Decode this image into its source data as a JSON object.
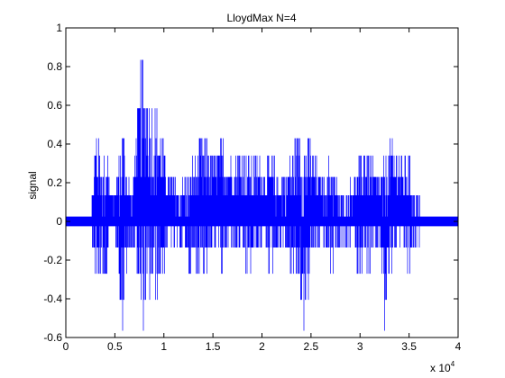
{
  "chart_data": {
    "type": "line",
    "title": "LloydMax  N=4",
    "xlabel": "",
    "ylabel": "signal",
    "xlim": [
      0,
      40000
    ],
    "ylim": [
      -0.6,
      1
    ],
    "x_multiplier_label": {
      "base": "x 10",
      "exponent": "4"
    },
    "xticks": [
      0,
      5000,
      10000,
      15000,
      20000,
      25000,
      30000,
      35000,
      40000
    ],
    "xtick_labels": [
      "0",
      "0.5",
      "1",
      "1.5",
      "2",
      "2.5",
      "3",
      "3.5",
      "4"
    ],
    "yticks": [
      -0.6,
      -0.4,
      -0.2,
      0,
      0.2,
      0.4,
      0.6,
      0.8,
      1
    ],
    "ytick_labels": [
      "-0.6",
      "-0.4",
      "-0.2",
      "0",
      "0.2",
      "0.4",
      "0.6",
      "0.8",
      "1"
    ],
    "grid": false,
    "quantization_levels": [
      -0.565,
      -0.405,
      -0.27,
      -0.135,
      -0.025,
      0.025,
      0.135,
      0.23,
      0.34,
      0.43,
      0.585,
      0.835
    ],
    "series": [
      {
        "color": "#0000ff",
        "envelope": [
          {
            "x": 0,
            "min": -0.02,
            "max": 0.05
          },
          {
            "x": 1000,
            "min": -0.02,
            "max": 0.05
          },
          {
            "x": 2000,
            "min": -0.03,
            "max": 0.05
          },
          {
            "x": 2600,
            "min": -0.03,
            "max": 0.06
          },
          {
            "x": 2900,
            "min": -0.27,
            "max": 0.34
          },
          {
            "x": 3100,
            "min": -0.4,
            "max": 0.585
          },
          {
            "x": 3500,
            "min": -0.27,
            "max": 0.43
          },
          {
            "x": 3800,
            "min": -0.4,
            "max": 0.34
          },
          {
            "x": 4200,
            "min": -0.27,
            "max": 0.43
          },
          {
            "x": 4500,
            "min": -0.13,
            "max": 0.23
          },
          {
            "x": 5000,
            "min": -0.02,
            "max": 0.135
          },
          {
            "x": 5500,
            "min": -0.4,
            "max": 0.43
          },
          {
            "x": 5800,
            "min": -0.565,
            "max": 0.585
          },
          {
            "x": 6200,
            "min": -0.27,
            "max": 0.34
          },
          {
            "x": 6800,
            "min": -0.13,
            "max": 0.135
          },
          {
            "x": 7200,
            "min": -0.27,
            "max": 0.585
          },
          {
            "x": 7700,
            "min": -0.565,
            "max": 0.835
          },
          {
            "x": 8300,
            "min": -0.565,
            "max": 0.835
          },
          {
            "x": 8800,
            "min": -0.4,
            "max": 0.585
          },
          {
            "x": 9500,
            "min": -0.4,
            "max": 0.585
          },
          {
            "x": 10000,
            "min": -0.27,
            "max": 0.43
          },
          {
            "x": 10500,
            "min": -0.13,
            "max": 0.23
          },
          {
            "x": 11000,
            "min": -0.13,
            "max": 0.23
          },
          {
            "x": 11500,
            "min": -0.13,
            "max": 0.135
          },
          {
            "x": 12000,
            "min": -0.13,
            "max": 0.23
          },
          {
            "x": 12500,
            "min": -0.27,
            "max": 0.23
          },
          {
            "x": 13000,
            "min": -0.27,
            "max": 0.34
          },
          {
            "x": 13700,
            "min": -0.27,
            "max": 0.43
          },
          {
            "x": 14500,
            "min": -0.27,
            "max": 0.43
          },
          {
            "x": 15000,
            "min": -0.13,
            "max": 0.34
          },
          {
            "x": 16000,
            "min": -0.27,
            "max": 0.43
          },
          {
            "x": 17000,
            "min": -0.13,
            "max": 0.34
          },
          {
            "x": 18000,
            "min": -0.27,
            "max": 0.43
          },
          {
            "x": 19000,
            "min": -0.27,
            "max": 0.34
          },
          {
            "x": 20000,
            "min": -0.13,
            "max": 0.34
          },
          {
            "x": 21000,
            "min": -0.27,
            "max": 0.34
          },
          {
            "x": 22000,
            "min": -0.13,
            "max": 0.23
          },
          {
            "x": 23000,
            "min": -0.27,
            "max": 0.34
          },
          {
            "x": 23800,
            "min": -0.4,
            "max": 0.585
          },
          {
            "x": 24200,
            "min": -0.565,
            "max": 0.43
          },
          {
            "x": 25000,
            "min": -0.27,
            "max": 0.43
          },
          {
            "x": 26000,
            "min": -0.13,
            "max": 0.23
          },
          {
            "x": 27000,
            "min": -0.27,
            "max": 0.34
          },
          {
            "x": 28000,
            "min": -0.13,
            "max": 0.135
          },
          {
            "x": 29000,
            "min": -0.13,
            "max": 0.23
          },
          {
            "x": 30000,
            "min": -0.27,
            "max": 0.34
          },
          {
            "x": 30500,
            "min": -0.27,
            "max": 0.43
          },
          {
            "x": 31200,
            "min": -0.27,
            "max": 0.34
          },
          {
            "x": 32000,
            "min": -0.13,
            "max": 0.23
          },
          {
            "x": 32500,
            "min": -0.565,
            "max": 0.34
          },
          {
            "x": 33000,
            "min": -0.27,
            "max": 0.43
          },
          {
            "x": 34000,
            "min": -0.13,
            "max": 0.34
          },
          {
            "x": 35000,
            "min": -0.27,
            "max": 0.34
          },
          {
            "x": 35800,
            "min": -0.13,
            "max": 0.135
          },
          {
            "x": 36500,
            "min": -0.03,
            "max": 0.05
          },
          {
            "x": 37500,
            "min": -0.03,
            "max": 0.05
          },
          {
            "x": 38500,
            "min": -0.02,
            "max": 0.03
          },
          {
            "x": 40000,
            "min": -0.01,
            "max": 0.02
          }
        ]
      }
    ]
  }
}
